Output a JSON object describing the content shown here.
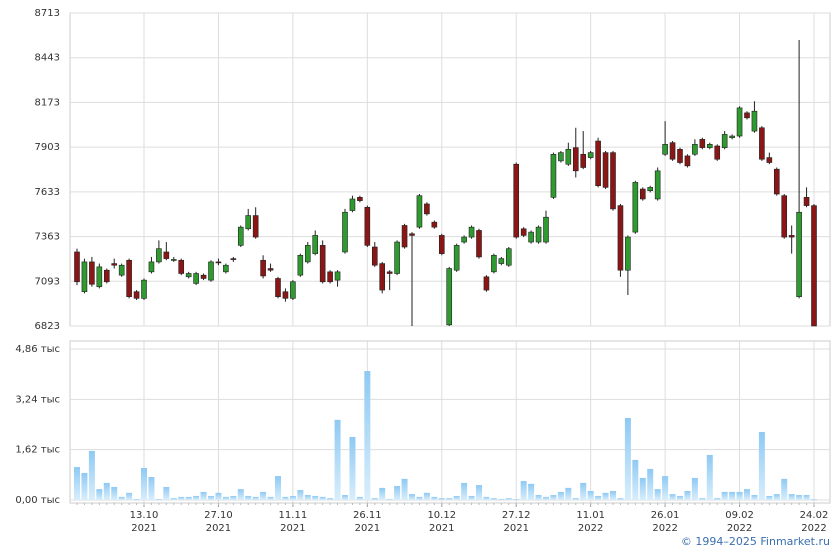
{
  "chart_data": {
    "type": "candlestick",
    "categories": [
      null,
      null,
      null,
      null,
      null,
      null,
      null,
      null,
      null,
      "13.10 2021",
      null,
      null,
      null,
      null,
      null,
      null,
      null,
      null,
      null,
      "27.10 2021",
      null,
      null,
      null,
      null,
      null,
      null,
      null,
      null,
      null,
      "11.11 2021",
      null,
      null,
      null,
      null,
      null,
      null,
      null,
      null,
      null,
      "26.11 2021",
      null,
      null,
      null,
      null,
      null,
      null,
      null,
      null,
      null,
      "10.12 2021",
      null,
      null,
      null,
      null,
      null,
      null,
      null,
      null,
      null,
      "27.12 2021",
      null,
      null,
      null,
      null,
      null,
      null,
      null,
      null,
      null,
      "11.01 2022",
      null,
      null,
      null,
      null,
      null,
      null,
      null,
      null,
      null,
      "26.01 2022",
      null,
      null,
      null,
      null,
      null,
      null,
      null,
      null,
      null,
      "09.02 2022",
      null,
      null,
      null,
      null,
      null,
      null,
      null,
      null,
      null,
      "24.02 2022"
    ],
    "open": [
      7270,
      7030,
      7210,
      7060,
      7160,
      7200,
      7130,
      7220,
      7030,
      6990,
      7150,
      7210,
      7270,
      7220,
      7220,
      7120,
      7080,
      7130,
      7100,
      7210,
      7150,
      7230,
      7310,
      7410,
      7490,
      7220,
      7170,
      7110,
      7030,
      6990,
      7130,
      7210,
      7260,
      7310,
      7150,
      7100,
      7270,
      7520,
      7600,
      7540,
      7300,
      7200,
      7150,
      7140,
      7430,
      7380,
      7420,
      7560,
      7450,
      7370,
      6830,
      7160,
      7330,
      7360,
      7400,
      7120,
      7150,
      7200,
      7190,
      7800,
      7410,
      7330,
      7330,
      7330,
      7600,
      7820,
      7800,
      7900,
      7860,
      7840,
      7940,
      7870,
      7870,
      7550,
      7160,
      7390,
      7650,
      7640,
      7590,
      7860,
      7930,
      7890,
      7850,
      7860,
      7950,
      7900,
      7910,
      7900,
      7960,
      7970,
      8110,
      8000,
      8020,
      7840,
      7770,
      7610,
      7370,
      7000,
      7600,
      7550
    ],
    "high": [
      7290,
      7230,
      7240,
      7200,
      7170,
      7230,
      7200,
      7230,
      7040,
      7110,
      7240,
      7340,
      7330,
      7240,
      7230,
      7150,
      7150,
      7140,
      7220,
      7230,
      7200,
      7240,
      7430,
      7530,
      7540,
      7250,
      7200,
      7120,
      7050,
      7100,
      7260,
      7330,
      7400,
      7340,
      7160,
      7160,
      7530,
      7610,
      7610,
      7550,
      7330,
      7210,
      7160,
      7340,
      7440,
      7390,
      7620,
      7570,
      7460,
      7380,
      7180,
      7320,
      7370,
      7430,
      7410,
      7130,
      7260,
      7240,
      7300,
      7810,
      7420,
      7400,
      7430,
      7520,
      7870,
      7880,
      7930,
      8020,
      8000,
      7880,
      7960,
      7880,
      7880,
      7560,
      7370,
      7700,
      7660,
      7670,
      7780,
      8060,
      7940,
      7900,
      7860,
      7950,
      7960,
      7930,
      7920,
      8000,
      7980,
      8150,
      8120,
      8180,
      8030,
      7870,
      7780,
      7620,
      7430,
      8550,
      7660,
      7560
    ],
    "low": [
      7070,
      7020,
      7060,
      7050,
      7080,
      7170,
      7120,
      6990,
      6980,
      6980,
      7140,
      7200,
      7220,
      7210,
      7130,
      7110,
      7070,
      7100,
      7090,
      7190,
      7140,
      7210,
      7300,
      7400,
      7350,
      7110,
      7150,
      6990,
      6970,
      6980,
      7120,
      7200,
      7250,
      7080,
      7080,
      7060,
      7260,
      7510,
      7570,
      7300,
      7180,
      7020,
      7040,
      7130,
      7290,
      6823,
      7410,
      7490,
      7410,
      7250,
      6823,
      7150,
      7320,
      7350,
      7230,
      7030,
      7140,
      7190,
      7180,
      7350,
      7360,
      7320,
      7320,
      7320,
      7590,
      7810,
      7790,
      7720,
      7770,
      7830,
      7660,
      7650,
      7520,
      7120,
      7010,
      7380,
      7580,
      7630,
      7580,
      7850,
      7820,
      7800,
      7780,
      7850,
      7890,
      7890,
      7820,
      7890,
      7950,
      7960,
      8070,
      7990,
      7820,
      7800,
      7610,
      7350,
      7260,
      6990,
      7540,
      6823
    ],
    "close": [
      7090,
      7210,
      7075,
      7180,
      7090,
      7190,
      7190,
      7000,
      6990,
      7100,
      7210,
      7290,
      7230,
      7225,
      7140,
      7140,
      7140,
      7110,
      7210,
      7205,
      7190,
      7225,
      7420,
      7490,
      7360,
      7125,
      7160,
      7000,
      6990,
      7090,
      7250,
      7310,
      7370,
      7090,
      7090,
      7150,
      7510,
      7590,
      7580,
      7310,
      7190,
      7040,
      7140,
      7330,
      7300,
      7370,
      7610,
      7500,
      7420,
      7260,
      7170,
      7310,
      7360,
      7420,
      7240,
      7040,
      7250,
      7230,
      7290,
      7360,
      7370,
      7390,
      7420,
      7480,
      7860,
      7870,
      7890,
      7760,
      7780,
      7870,
      7670,
      7660,
      7530,
      7160,
      7360,
      7690,
      7590,
      7660,
      7760,
      7920,
      7830,
      7810,
      7790,
      7920,
      7900,
      7920,
      7830,
      7980,
      7970,
      8140,
      8080,
      8120,
      7830,
      7810,
      7620,
      7360,
      7360,
      7510,
      7550,
      6823
    ],
    "up_color": "#2f9a2f",
    "down_color": "#8a1616",
    "ylim": [
      6823,
      8713
    ],
    "yticks": [
      6823,
      7093,
      7363,
      7633,
      7903,
      8173,
      8443,
      8713
    ],
    "grid": true,
    "volume": {
      "values": [
        1.06,
        0.87,
        1.58,
        0.35,
        0.55,
        0.42,
        0.1,
        0.23,
        0.03,
        1.03,
        0.74,
        0.03,
        0.42,
        0.06,
        0.1,
        0.1,
        0.13,
        0.26,
        0.13,
        0.23,
        0.1,
        0.13,
        0.35,
        0.13,
        0.1,
        0.26,
        0.1,
        0.77,
        0.1,
        0.13,
        0.32,
        0.16,
        0.13,
        0.1,
        0.06,
        2.58,
        0.16,
        2.03,
        0.1,
        4.15,
        0.06,
        0.39,
        0.03,
        0.45,
        0.68,
        0.19,
        0.1,
        0.23,
        0.1,
        0.06,
        0.06,
        0.13,
        0.55,
        0.13,
        0.48,
        0.1,
        0.06,
        0.03,
        0.06,
        0.03,
        0.61,
        0.52,
        0.16,
        0.1,
        0.16,
        0.26,
        0.39,
        0.06,
        0.55,
        0.29,
        0.13,
        0.23,
        0.29,
        0.06,
        2.64,
        1.29,
        0.71,
        1.0,
        0.35,
        0.77,
        0.19,
        0.13,
        0.29,
        0.71,
        0.06,
        1.45,
        0.06,
        0.26,
        0.26,
        0.26,
        0.35,
        0.16,
        2.19,
        0.13,
        0.19,
        0.68,
        0.19,
        0.16,
        0.16,
        0.03
      ],
      "ylim": [
        0,
        4.86
      ],
      "yticks": [
        {
          "value": 0,
          "label": "0,00 тыс"
        },
        {
          "value": 1.62,
          "label": "1,62 тыс"
        },
        {
          "value": 3.24,
          "label": "3,24 тыс"
        },
        {
          "value": 4.86,
          "label": "4,86 тыс"
        }
      ]
    }
  },
  "footer": "© 1994–2025 Finmarket.ru"
}
